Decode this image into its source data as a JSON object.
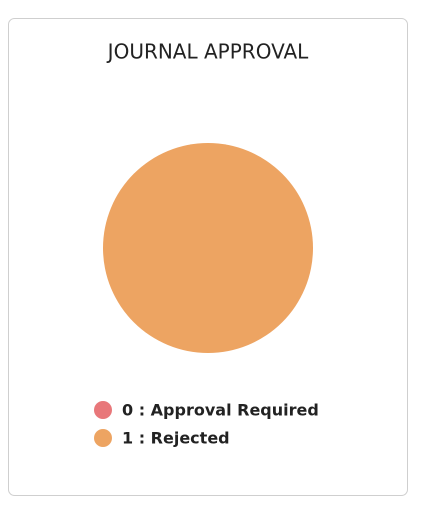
{
  "chart_data": {
    "type": "pie",
    "title": "JOURNAL APPROVAL",
    "categories": [
      "0 : Approval Required",
      "1 : Rejected"
    ],
    "values": [
      0,
      1
    ],
    "colors": [
      "#e8777a",
      "#eda462"
    ]
  }
}
